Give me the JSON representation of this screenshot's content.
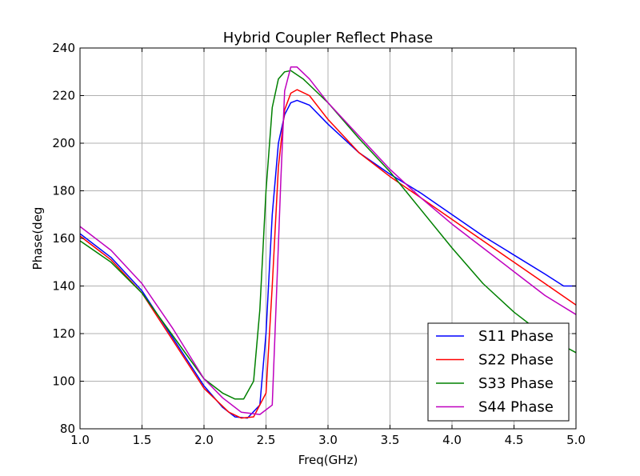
{
  "chart_data": {
    "type": "line",
    "title": "Hybrid Coupler Reflect Phase",
    "xlabel": "Freq(GHz)",
    "ylabel": "Phase(deg",
    "xlim": [
      1.0,
      5.0
    ],
    "ylim": [
      80,
      240
    ],
    "xticks": [
      "1.0",
      "1.5",
      "2.0",
      "2.5",
      "3.0",
      "3.5",
      "4.0",
      "4.5",
      "5.0"
    ],
    "yticks": [
      "80",
      "100",
      "120",
      "140",
      "160",
      "180",
      "200",
      "220",
      "240"
    ],
    "grid": true,
    "legend_position": "lower-right",
    "series": [
      {
        "name": "S11 Phase",
        "color": "#0000ff",
        "points": [
          [
            1.0,
            162
          ],
          [
            1.25,
            152
          ],
          [
            1.5,
            138
          ],
          [
            1.75,
            118
          ],
          [
            2.0,
            98
          ],
          [
            2.15,
            89
          ],
          [
            2.25,
            85
          ],
          [
            2.35,
            84.5
          ],
          [
            2.45,
            90
          ],
          [
            2.5,
            120
          ],
          [
            2.55,
            170
          ],
          [
            2.6,
            200
          ],
          [
            2.65,
            212
          ],
          [
            2.7,
            217
          ],
          [
            2.75,
            218
          ],
          [
            2.85,
            216
          ],
          [
            3.0,
            208
          ],
          [
            3.25,
            196
          ],
          [
            3.5,
            187
          ],
          [
            3.75,
            179
          ],
          [
            4.0,
            170
          ],
          [
            4.25,
            161
          ],
          [
            4.5,
            153
          ],
          [
            4.75,
            145
          ],
          [
            4.9,
            140
          ],
          [
            5.0,
            140
          ]
        ]
      },
      {
        "name": "S22 Phase",
        "color": "#ff0000",
        "points": [
          [
            1.0,
            161
          ],
          [
            1.25,
            151
          ],
          [
            1.5,
            137
          ],
          [
            1.75,
            117
          ],
          [
            2.0,
            97
          ],
          [
            2.2,
            87
          ],
          [
            2.3,
            84.5
          ],
          [
            2.4,
            85
          ],
          [
            2.5,
            95
          ],
          [
            2.55,
            140
          ],
          [
            2.6,
            190
          ],
          [
            2.65,
            214
          ],
          [
            2.7,
            221
          ],
          [
            2.75,
            222.5
          ],
          [
            2.85,
            220
          ],
          [
            3.0,
            210
          ],
          [
            3.25,
            196
          ],
          [
            3.5,
            186
          ],
          [
            3.75,
            177
          ],
          [
            4.0,
            168
          ],
          [
            4.25,
            159
          ],
          [
            4.5,
            150
          ],
          [
            4.75,
            141
          ],
          [
            5.0,
            132
          ]
        ]
      },
      {
        "name": "S33 Phase",
        "color": "#008000",
        "points": [
          [
            1.0,
            159
          ],
          [
            1.25,
            150
          ],
          [
            1.5,
            137
          ],
          [
            1.75,
            119
          ],
          [
            2.0,
            101
          ],
          [
            2.15,
            95
          ],
          [
            2.25,
            92.5
          ],
          [
            2.32,
            92.5
          ],
          [
            2.4,
            100
          ],
          [
            2.45,
            130
          ],
          [
            2.5,
            180
          ],
          [
            2.55,
            215
          ],
          [
            2.6,
            227
          ],
          [
            2.65,
            230
          ],
          [
            2.7,
            230.5
          ],
          [
            2.8,
            227
          ],
          [
            3.0,
            217
          ],
          [
            3.25,
            202
          ],
          [
            3.5,
            188
          ],
          [
            3.75,
            172
          ],
          [
            4.0,
            156
          ],
          [
            4.25,
            141
          ],
          [
            4.5,
            129
          ],
          [
            4.75,
            119
          ],
          [
            5.0,
            112
          ]
        ]
      },
      {
        "name": "S44 Phase",
        "color": "#bf00bf",
        "points": [
          [
            1.0,
            165
          ],
          [
            1.25,
            155
          ],
          [
            1.5,
            141
          ],
          [
            1.75,
            122
          ],
          [
            2.0,
            101
          ],
          [
            2.15,
            93
          ],
          [
            2.3,
            87
          ],
          [
            2.45,
            86
          ],
          [
            2.55,
            90
          ],
          [
            2.58,
            130
          ],
          [
            2.62,
            185
          ],
          [
            2.65,
            222
          ],
          [
            2.7,
            232
          ],
          [
            2.75,
            232
          ],
          [
            2.85,
            227
          ],
          [
            3.0,
            217
          ],
          [
            3.25,
            203
          ],
          [
            3.5,
            189
          ],
          [
            3.75,
            177
          ],
          [
            4.0,
            166
          ],
          [
            4.25,
            156
          ],
          [
            4.5,
            146
          ],
          [
            4.75,
            136
          ],
          [
            5.0,
            128
          ]
        ]
      }
    ]
  }
}
